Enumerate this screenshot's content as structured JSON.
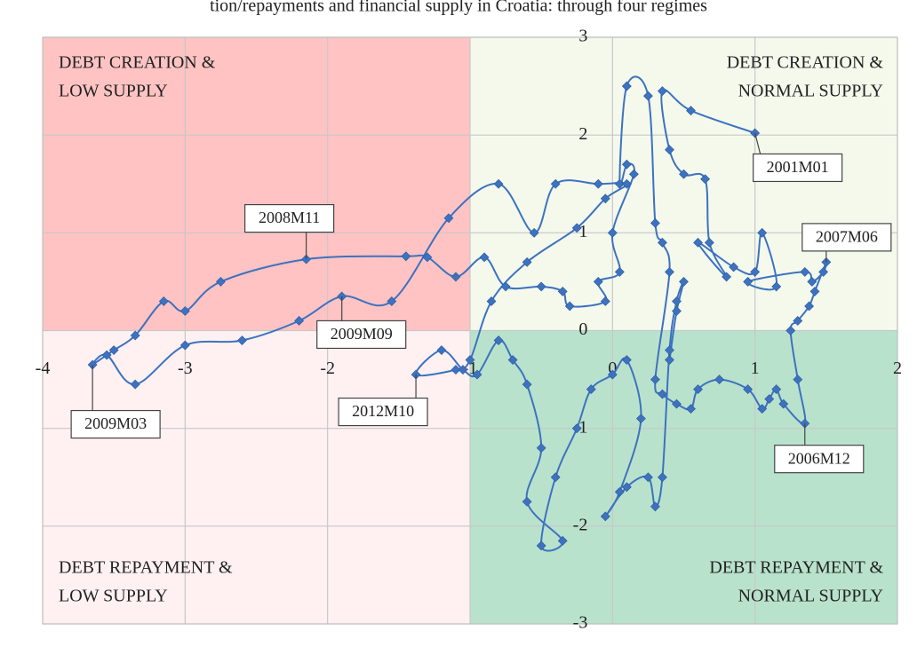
{
  "chart_data": {
    "type": "scatter-line",
    "title": "tion/repayments and financial supply in Croatia: through four regimes",
    "xlim": [
      -4,
      2
    ],
    "ylim": [
      -3,
      3
    ],
    "xticks": [
      -4,
      -3,
      -2,
      -1,
      0,
      1,
      2
    ],
    "yticks": [
      -3,
      -2,
      -1,
      0,
      1,
      2,
      3
    ],
    "grid": true,
    "color": "#3d72c0",
    "quadrant_split": {
      "x": -1,
      "y": 0
    },
    "quadrants": [
      {
        "lines": [
          "DEBT CREATION &",
          "LOW SUPPLY"
        ],
        "corner": "top-left",
        "color": "#ffbcbc"
      },
      {
        "lines": [
          "DEBT CREATION &",
          "NORMAL SUPPLY"
        ],
        "corner": "top-right",
        "color": "#f3f8ea"
      },
      {
        "lines": [
          "DEBT REPAYMENT &",
          "LOW SUPPLY"
        ],
        "corner": "bottom-left",
        "color": "#fff0f0"
      },
      {
        "lines": [
          "DEBT REPAYMENT &",
          "NORMAL SUPPLY"
        ],
        "corner": "bottom-right",
        "color": "#b1dfc6"
      }
    ],
    "x": [
      1.0,
      0.55,
      0.35,
      0.4,
      0.5,
      0.65,
      0.68,
      0.8,
      0.6,
      0.85,
      1.0,
      1.05,
      1.15,
      0.95,
      1.35,
      1.4,
      1.48,
      1.5,
      1.42,
      1.38,
      1.3,
      1.25,
      1.3,
      1.35,
      1.2,
      1.15,
      1.1,
      1.05,
      0.95,
      0.75,
      0.6,
      0.55,
      0.45,
      0.35,
      0.3,
      0.4,
      0.35,
      0.3,
      0.25,
      0.1,
      0.05,
      0.1,
      0.15,
      0.0,
      0.05,
      -0.1,
      -0.05,
      -0.3,
      -0.35,
      -0.5,
      -0.75,
      -0.9,
      -1.1,
      -1.3,
      -1.45,
      -2.15,
      -2.75,
      -3.0,
      -3.15,
      -3.35,
      -3.5,
      -3.65,
      -3.55,
      -3.35,
      -3.0,
      -2.6,
      -2.2,
      -1.9,
      -1.55,
      -1.15,
      -0.8,
      -0.55,
      -0.4,
      -0.1,
      0.1,
      -0.05,
      -0.25,
      -0.6,
      -0.85,
      -1.0,
      -1.1,
      -1.38,
      -1.2,
      -1.05,
      -0.95,
      -0.8,
      -0.7,
      -0.6,
      -0.5,
      -0.6,
      -0.35,
      -0.5,
      -0.4,
      -0.25,
      -0.15,
      0.0,
      0.1,
      0.2,
      0.05,
      -0.05,
      0.1,
      0.25,
      0.3,
      0.35,
      0.4,
      0.45,
      0.5,
      0.45,
      0.4
    ],
    "y": [
      2.02,
      2.25,
      2.45,
      1.85,
      1.6,
      1.55,
      0.9,
      0.55,
      0.9,
      0.65,
      0.6,
      1.0,
      0.45,
      0.5,
      0.6,
      0.5,
      0.6,
      0.7,
      0.4,
      0.25,
      0.1,
      0.0,
      -0.5,
      -0.95,
      -0.75,
      -0.6,
      -0.7,
      -0.8,
      -0.6,
      -0.5,
      -0.6,
      -0.8,
      -0.75,
      -0.65,
      -0.5,
      0.6,
      0.9,
      1.1,
      2.4,
      2.5,
      1.5,
      1.7,
      1.6,
      1.0,
      0.6,
      0.5,
      0.3,
      0.25,
      0.4,
      0.45,
      0.45,
      0.75,
      0.55,
      0.75,
      0.76,
      0.73,
      0.5,
      0.2,
      0.3,
      -0.05,
      -0.2,
      -0.35,
      -0.25,
      -0.55,
      -0.15,
      -0.1,
      0.1,
      0.35,
      0.3,
      1.15,
      1.5,
      1.0,
      1.5,
      1.5,
      1.5,
      1.35,
      1.05,
      0.7,
      0.3,
      -0.3,
      -0.4,
      -0.45,
      -0.2,
      -0.4,
      -0.45,
      -0.1,
      -0.3,
      -0.55,
      -1.2,
      -1.75,
      -2.15,
      -2.2,
      -1.5,
      -1.0,
      -0.6,
      -0.45,
      -0.3,
      -0.9,
      -1.65,
      -1.9,
      -1.6,
      -1.5,
      -1.8,
      -1.5,
      -0.2,
      0.3,
      0.5,
      0.2,
      -0.3
    ],
    "annotations": [
      {
        "text": "2001M01",
        "x": 1.0,
        "y": 2.02
      },
      {
        "text": "2007M06",
        "x": 1.5,
        "y": 0.7
      },
      {
        "text": "2008M11",
        "x": -2.15,
        "y": 0.73
      },
      {
        "text": "2009M09",
        "x": -1.9,
        "y": 0.35
      },
      {
        "text": "2009M03",
        "x": -3.65,
        "y": -0.35
      },
      {
        "text": "2012M10",
        "x": -1.38,
        "y": -0.45
      },
      {
        "text": "2006M12",
        "x": 1.35,
        "y": -0.95
      }
    ]
  }
}
